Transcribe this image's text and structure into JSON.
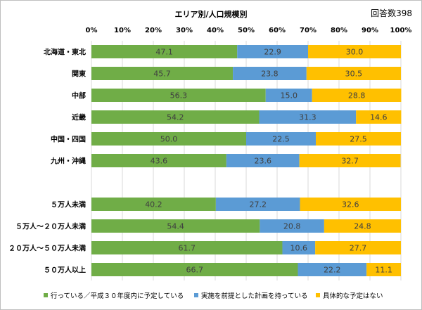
{
  "header": {
    "title": "エリア別/人口規模別",
    "respondents": "回答数398"
  },
  "colors": {
    "green": "#70AD47",
    "blue": "#5B9BD5",
    "yellow": "#FFC000",
    "grid": "#D9D9D9",
    "label_dark": "#404040"
  },
  "chart_data": {
    "type": "bar",
    "orientation": "horizontal",
    "stacked": true,
    "percent_stacked": true,
    "xlim": [
      0,
      100
    ],
    "x_ticks": [
      "0%",
      "10%",
      "20%",
      "30%",
      "40%",
      "50%",
      "60%",
      "70%",
      "80%",
      "90%",
      "100%"
    ],
    "grid": true,
    "legend_position": "bottom",
    "categories": [
      "北海道・東北",
      "関東",
      "中部",
      "近畿",
      "中国・四国",
      "九州・沖縄",
      "",
      "５万人未満",
      "５万人～２０万人未満",
      "２０万人～５０万人未満",
      "５０万人以上"
    ],
    "series": [
      {
        "name": "行っている／平成３０年度内に予定している",
        "color": "#70AD47",
        "values": [
          47.1,
          45.7,
          56.3,
          54.2,
          50.0,
          43.6,
          null,
          40.2,
          54.4,
          61.7,
          66.7
        ],
        "labels": [
          "47.1",
          "45.7",
          "56.3",
          "54.2",
          "50.0",
          "43.6",
          "",
          "40.2",
          "54.4",
          "61.7",
          "66.7"
        ]
      },
      {
        "name": "実施を前提とした計画を持っている",
        "color": "#5B9BD5",
        "values": [
          22.9,
          23.8,
          15.0,
          31.3,
          22.5,
          23.6,
          null,
          27.2,
          20.8,
          10.6,
          22.2
        ],
        "labels": [
          "22.9",
          "23.8",
          "15.0",
          "31.3",
          "22.5",
          "23.6",
          "",
          "27.2",
          "20.8",
          "10.6",
          "22.2"
        ]
      },
      {
        "name": "具体的な予定はない",
        "color": "#FFC000",
        "values": [
          30.0,
          30.5,
          28.8,
          14.6,
          27.5,
          32.7,
          null,
          32.6,
          24.8,
          27.7,
          11.1
        ],
        "labels": [
          "30.0",
          "30.5",
          "28.8",
          "14.6",
          "27.5",
          "32.7",
          "",
          "32.6",
          "24.8",
          "27.7",
          "11.1"
        ]
      }
    ]
  }
}
